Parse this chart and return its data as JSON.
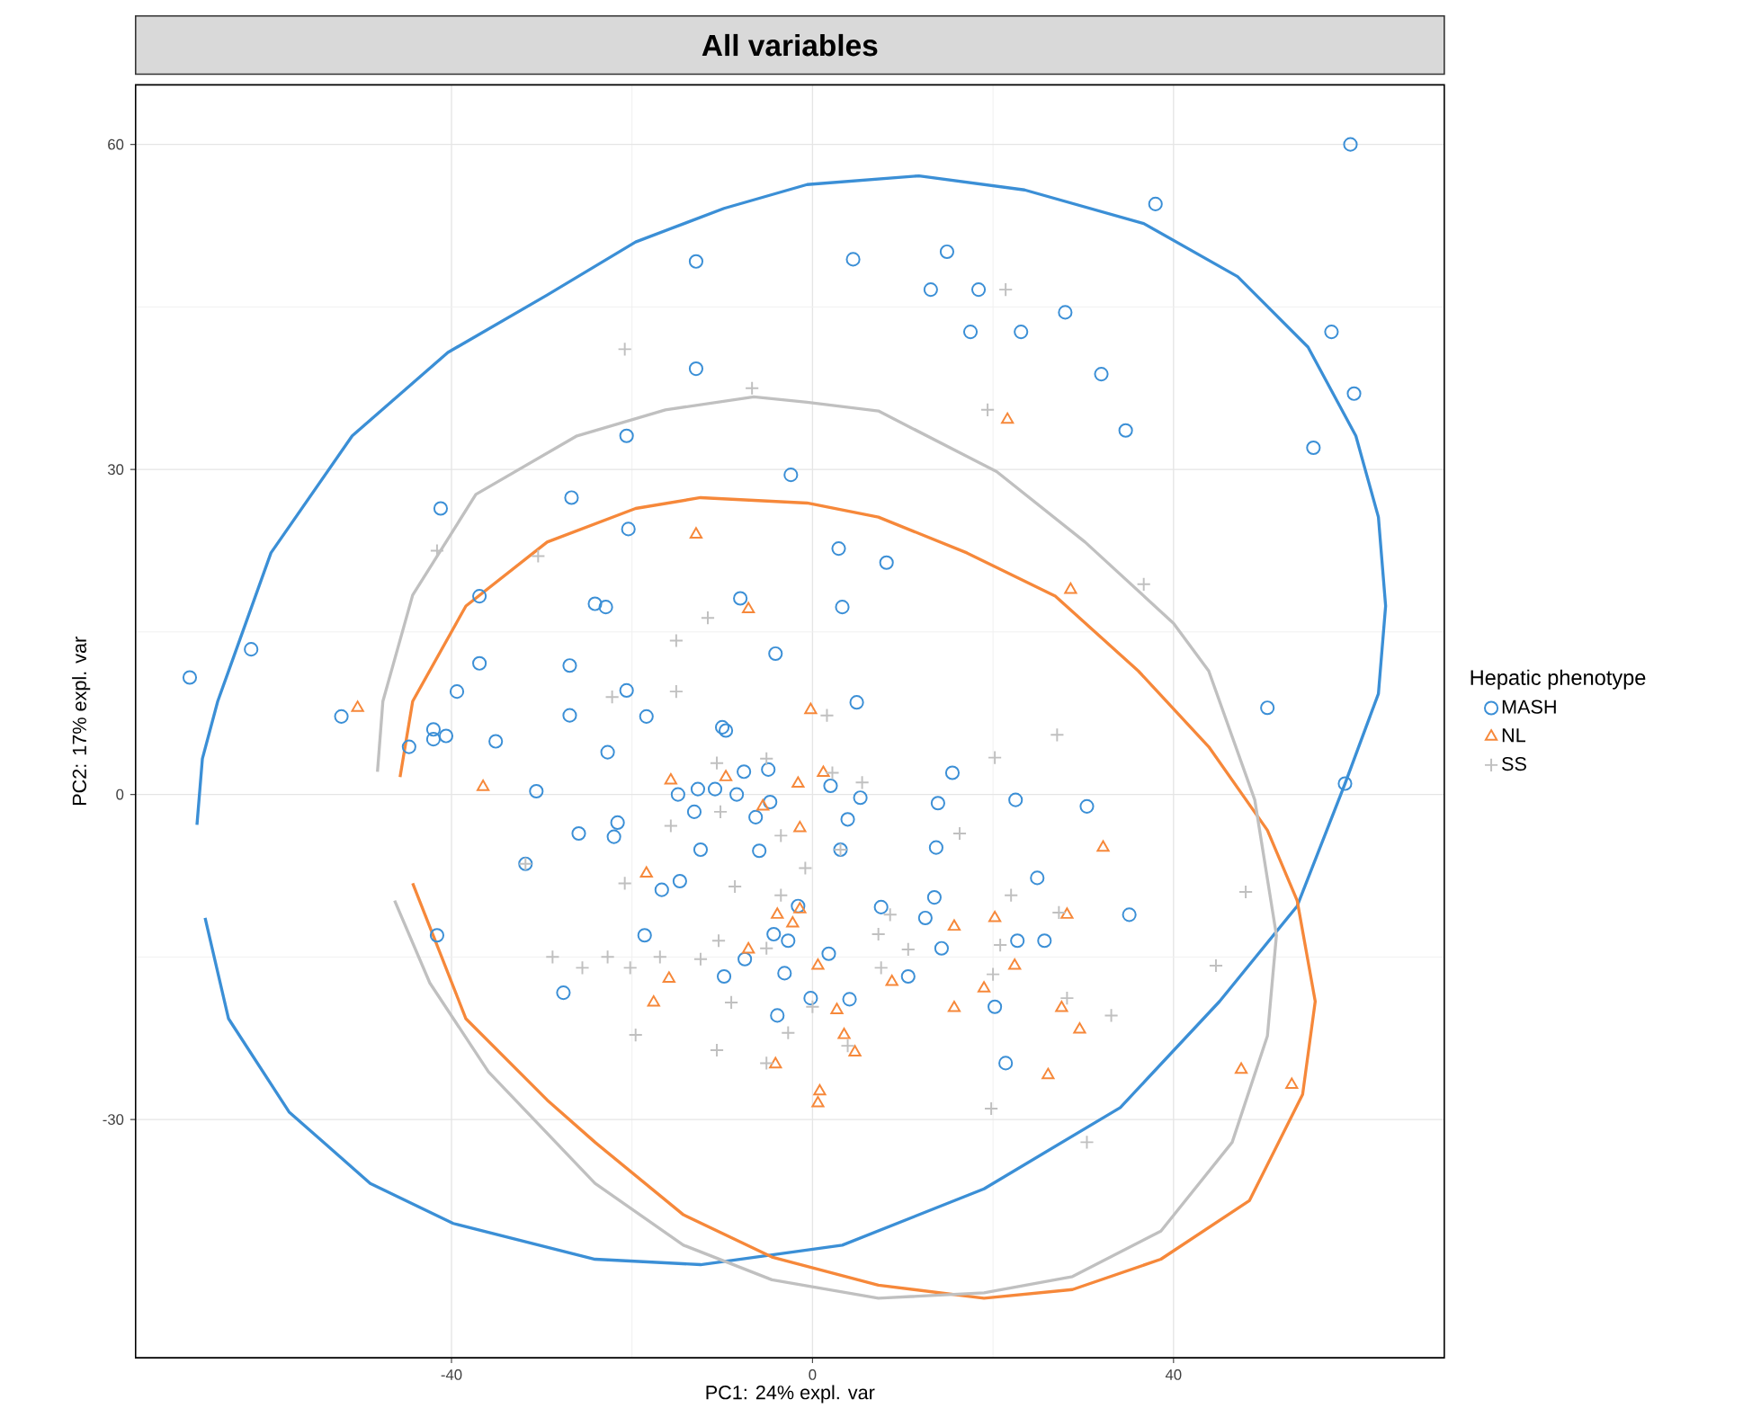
{
  "chart_data": {
    "type": "scatter",
    "title": "All variables",
    "xlabel": "PC1: 24% expl. var",
    "ylabel": "PC2: 17% expl. var",
    "legend_title": "Hepatic phenotype",
    "legend": "right",
    "grid": true,
    "xlim": [
      -75,
      70
    ],
    "ylim": [
      -52,
      65.5
    ],
    "xticks": [
      -40,
      0,
      40
    ],
    "yticks": [
      -30,
      0,
      30,
      60
    ],
    "series": [
      {
        "name": "MASH",
        "color": "#3b8fd6",
        "marker": "circle",
        "x": [
          -69.0,
          -62.2,
          -52.2,
          -44.7,
          -42.0,
          -42.0,
          -40.6,
          -39.4,
          -41.2,
          -36.9,
          -36.9,
          -35.1,
          -30.6,
          -26.7,
          -26.9,
          -26.9,
          -24.1,
          -22.9,
          -20.4,
          -20.6,
          -12.9,
          -12.9,
          -2.4,
          -8.0,
          -4.1,
          -20.6,
          4.5,
          14.9,
          13.1,
          18.4,
          17.5,
          23.1,
          28.0,
          32.0,
          34.7,
          38.0,
          59.6,
          57.5,
          60.0,
          55.5,
          2.9,
          8.2,
          3.3,
          50.4,
          59.0,
          22.5,
          30.4,
          24.9,
          35.1,
          22.7,
          25.7,
          20.2,
          21.4,
          -25.9,
          -31.8,
          -41.6,
          -27.6,
          -18.4,
          4.9,
          -22.7,
          -10.0,
          -9.6,
          -7.6,
          -4.9,
          -14.9,
          -12.7,
          -10.8,
          -8.4,
          -13.1,
          -6.3,
          -4.7,
          2.0,
          5.3,
          3.9,
          15.5,
          13.9,
          -21.6,
          -22.0,
          -12.4,
          -5.9,
          3.1,
          13.7,
          -14.7,
          -16.7,
          -1.6,
          7.6,
          13.5,
          12.5,
          14.3,
          -4.3,
          -2.7,
          -18.6,
          1.8,
          -7.5,
          -9.8,
          -3.1,
          10.6,
          -0.2,
          4.1,
          -3.9
        ],
        "values": [
          10.8,
          13.4,
          7.2,
          4.4,
          6.0,
          5.1,
          5.4,
          9.5,
          26.4,
          18.3,
          12.1,
          4.9,
          0.3,
          27.4,
          11.9,
          7.3,
          17.6,
          17.3,
          24.5,
          33.1,
          39.3,
          49.2,
          29.5,
          18.1,
          13.0,
          9.6,
          49.4,
          50.1,
          46.6,
          46.6,
          42.7,
          42.7,
          44.5,
          38.8,
          33.6,
          54.5,
          60.0,
          42.7,
          37.0,
          32.0,
          22.7,
          21.4,
          17.3,
          8.0,
          1.0,
          -0.5,
          -1.1,
          -7.7,
          -11.1,
          -13.5,
          -13.5,
          -19.6,
          -24.8,
          -3.6,
          -6.4,
          -13.0,
          -18.3,
          7.2,
          8.5,
          3.9,
          6.2,
          5.9,
          2.1,
          2.3,
          0.0,
          0.5,
          0.5,
          0.0,
          -1.6,
          -2.1,
          -0.7,
          0.8,
          -0.3,
          -2.3,
          2.0,
          -0.8,
          -2.6,
          -3.9,
          -5.1,
          -5.2,
          -5.1,
          -4.9,
          -8.0,
          -8.8,
          -10.3,
          -10.4,
          -9.5,
          -11.4,
          -14.2,
          -12.9,
          -13.5,
          -13.0,
          -14.7,
          -15.2,
          -16.8,
          -16.5,
          -16.8,
          -18.8,
          -18.9,
          -20.4
        ]
      },
      {
        "name": "NL",
        "color": "#f6883a",
        "marker": "triangle",
        "x": [
          -50.4,
          -36.5,
          -12.9,
          -7.1,
          21.6,
          28.6,
          32.2,
          28.2,
          20.2,
          22.4,
          27.6,
          29.6,
          26.1,
          47.5,
          53.1,
          -0.2,
          -15.7,
          -9.6,
          -1.6,
          1.2,
          -5.5,
          -1.4,
          -18.4,
          -3.9,
          -1.4,
          -2.2,
          15.7,
          -7.1,
          0.6,
          8.8,
          -15.9,
          -17.6,
          2.7,
          19.0,
          15.7,
          3.5,
          4.7,
          -4.1,
          0.8,
          0.6
        ],
        "values": [
          8.0,
          0.7,
          24.0,
          17.1,
          34.6,
          18.9,
          -4.9,
          -11.1,
          -11.4,
          -15.8,
          -19.7,
          -21.7,
          -25.9,
          -25.4,
          -26.8,
          7.8,
          1.3,
          1.6,
          1.0,
          2.0,
          -1.1,
          -3.1,
          -7.3,
          -11.1,
          -10.6,
          -11.9,
          -12.2,
          -14.3,
          -15.8,
          -17.3,
          -17.0,
          -19.2,
          -19.9,
          -17.9,
          -19.7,
          -22.2,
          -23.8,
          -24.9,
          -27.4,
          -28.5
        ]
      },
      {
        "name": "SS",
        "color": "#c0c0c0",
        "marker": "cross",
        "x": [
          -20.8,
          -6.7,
          -41.6,
          -30.4,
          -11.6,
          -15.1,
          -22.2,
          -15.1,
          21.4,
          19.4,
          36.7,
          27.1,
          20.2,
          22.0,
          27.3,
          20.8,
          28.2,
          33.1,
          19.8,
          30.4,
          48.0,
          44.7,
          20.0,
          -31.8,
          1.6,
          -10.6,
          -5.1,
          2.2,
          5.5,
          -15.7,
          -10.2,
          -3.5,
          3.1,
          -0.8,
          16.3,
          -20.8,
          -8.6,
          -3.5,
          8.6,
          7.3,
          -22.7,
          -20.2,
          -16.9,
          -12.4,
          -10.4,
          -5.1,
          10.6,
          7.6,
          -9.0,
          -2.7,
          -19.6,
          -10.6,
          0.0,
          -5.1,
          3.9,
          -28.8,
          -25.5
        ],
        "values": [
          41.1,
          37.5,
          22.5,
          22.0,
          16.3,
          9.5,
          9.0,
          14.2,
          46.6,
          35.5,
          19.4,
          5.5,
          3.4,
          -9.3,
          -10.9,
          -13.9,
          -18.8,
          -20.4,
          -29.0,
          -32.1,
          -9.0,
          -15.8,
          -16.6,
          -6.4,
          7.3,
          2.9,
          3.3,
          2.0,
          1.1,
          -2.9,
          -1.6,
          -3.8,
          -5.1,
          -6.8,
          -3.6,
          -8.2,
          -8.5,
          -9.3,
          -11.1,
          -12.9,
          -15.0,
          -16.0,
          -15.0,
          -15.2,
          -13.5,
          -14.2,
          -14.3,
          -16.0,
          -19.2,
          -22.0,
          -22.2,
          -23.6,
          -19.6,
          -24.8,
          -23.2,
          -15.0,
          -16.0
        ]
      },
      {
        "type": "line",
        "color": "#3b8fd6",
        "marker": "none",
        "x": [
          -68.2,
          -67.6,
          -65.9,
          -60.0,
          -51.0,
          -40.4,
          -29.4,
          -19.6,
          -9.8,
          -0.6,
          11.8,
          23.5,
          36.7,
          47.1,
          54.9,
          60.2,
          62.7,
          63.5,
          62.7,
          59.0,
          53.7,
          45.1,
          34.1,
          19.0,
          3.3,
          -12.4,
          -24.1,
          -39.8,
          -49.0,
          -58.0,
          -64.7,
          -67.3
        ],
        "values": [
          -2.8,
          3.3,
          8.6,
          22.3,
          33.1,
          40.8,
          46.1,
          51.0,
          54.1,
          56.3,
          57.1,
          55.8,
          52.7,
          47.8,
          41.3,
          33.1,
          25.6,
          17.4,
          9.3,
          1.0,
          -10.3,
          -19.1,
          -28.9,
          -36.4,
          -41.6,
          -43.4,
          -42.9,
          -39.6,
          -35.9,
          -29.3,
          -20.7,
          -11.4
        ]
      },
      {
        "type": "line",
        "color": "#f6883a",
        "marker": "none",
        "x": [
          -45.7,
          -44.3,
          -38.4,
          -29.4,
          -19.6,
          -12.4,
          -0.6,
          7.3,
          17.1,
          26.9,
          36.1,
          43.9,
          50.4,
          53.7,
          55.7,
          54.3,
          48.4,
          38.6,
          28.8,
          19.0,
          7.3,
          -4.5,
          -14.3,
          -24.1,
          -29.4,
          -38.4,
          -44.3
        ],
        "values": [
          1.6,
          8.6,
          17.4,
          23.3,
          26.4,
          27.4,
          26.9,
          25.6,
          22.3,
          18.3,
          11.4,
          4.4,
          -3.3,
          -9.8,
          -19.1,
          -27.7,
          -37.5,
          -42.9,
          -45.7,
          -46.5,
          -45.3,
          -42.7,
          -38.8,
          -32.1,
          -28.2,
          -20.7,
          -8.2
        ]
      },
      {
        "type": "line",
        "color": "#c0c0c0",
        "marker": "none",
        "x": [
          -48.2,
          -47.6,
          -44.3,
          -37.3,
          -26.1,
          -16.3,
          -6.5,
          -0.6,
          7.3,
          20.4,
          30.2,
          40.0,
          43.9,
          49.0,
          51.4,
          50.4,
          46.5,
          38.6,
          28.8,
          19.0,
          7.3,
          -4.5,
          -14.3,
          -24.1,
          -35.9,
          -42.4,
          -46.3
        ],
        "values": [
          2.1,
          8.6,
          18.4,
          27.7,
          33.1,
          35.5,
          36.7,
          36.2,
          35.4,
          29.8,
          23.3,
          15.8,
          11.4,
          -0.5,
          -13.0,
          -22.3,
          -32.1,
          -40.3,
          -44.5,
          -46.0,
          -46.5,
          -44.8,
          -41.6,
          -35.9,
          -25.6,
          -17.4,
          -9.8
        ]
      }
    ]
  }
}
